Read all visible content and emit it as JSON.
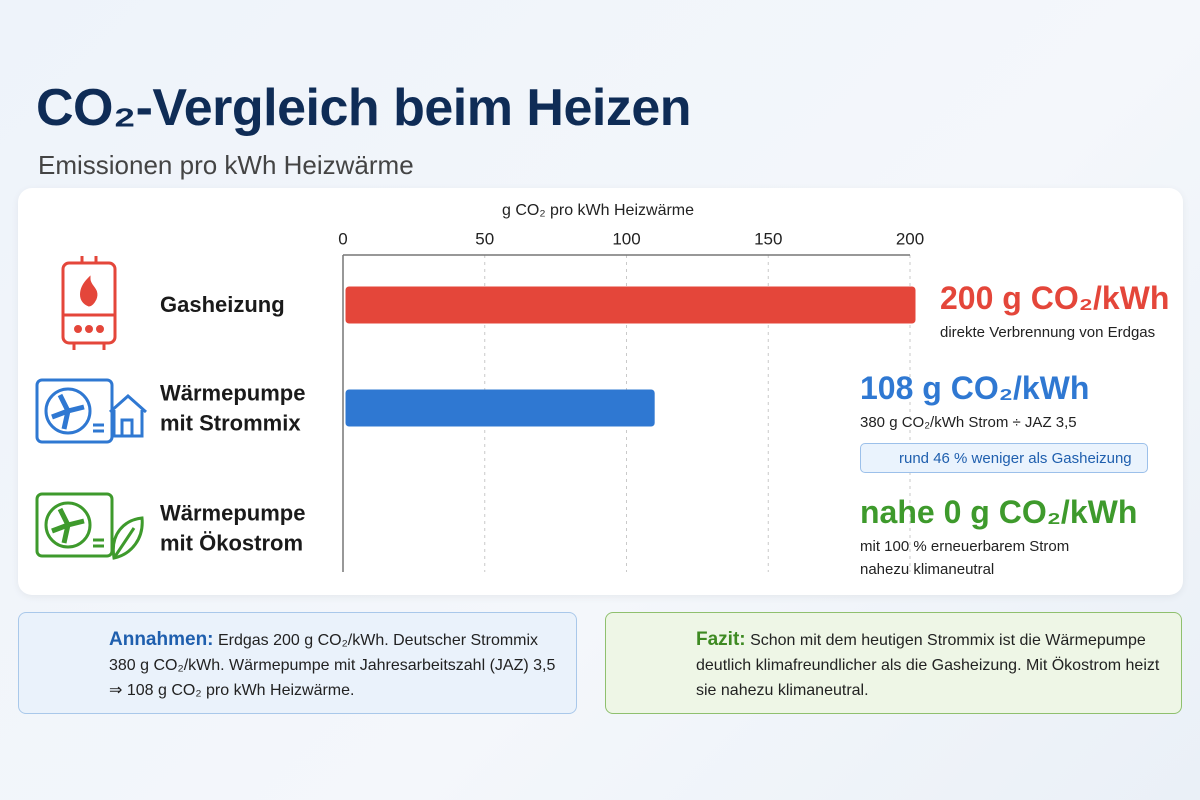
{
  "chart_data": {
    "type": "bar",
    "orientation": "horizontal",
    "title": "CO₂-Vergleich beim Heizen",
    "subtitle": "Emissionen pro kWh Heizwärme",
    "x_label": "g CO₂ pro kWh Heizwärme",
    "categories": [
      "Gasheizung",
      "Wärmepumpe mit Strommix",
      "Wärmepumpe mit Ökostrom"
    ],
    "values": [
      200,
      108,
      0
    ],
    "value_labels": [
      "200 g CO₂/kWh",
      "108 g CO₂/kWh",
      "nahe 0 g CO₂/kWh"
    ],
    "colors": [
      "#e4463a",
      "#2f78d2",
      "#3e9a2c"
    ],
    "notes": [
      [
        "direkte Verbrennung von Erdgas"
      ],
      [
        "380 g CO₂/kWh Strom ÷ JAZ 3,5"
      ],
      [
        "mit 100 % erneuerbarem Strom",
        "nahezu klimaneutral"
      ]
    ],
    "badge": "rund 46 % weniger als Gasheizung",
    "xlim": [
      0,
      200
    ],
    "xticks": [
      0,
      50,
      100,
      150,
      200
    ],
    "grid": true
  },
  "assumptions": {
    "heading": "Annahmen:",
    "text": "Erdgas 200 g CO₂/kWh. Deutscher Strommix 380 g CO₂/kWh. Wärmepumpe mit Jahresarbeitszahl (JAZ) 3,5 ⇒ 108 g CO₂ pro kWh Heizwärme."
  },
  "conclusion": {
    "heading": "Fazit:",
    "text": "Schon mit dem heutigen Strommix ist die Wärmepumpe deutlich klimafreundlicher als die Gasheizung. Mit Ökostrom heizt sie nahezu klimaneutral."
  }
}
